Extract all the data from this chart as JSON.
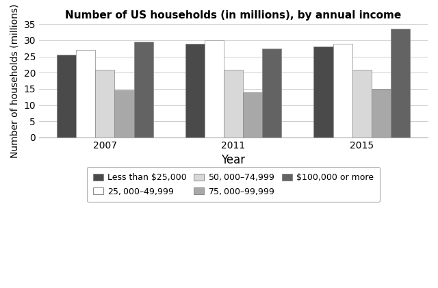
{
  "title": "Number of US households (in millions), by annual income",
  "xlabel": "Year",
  "ylabel": "Number of households (millions)",
  "years": [
    "2007",
    "2011",
    "2015"
  ],
  "categories": [
    "Less than $25,000",
    "$25,000–$49,999",
    "$50,000–$74,999",
    "$75,000–$99,999",
    "$100,000 or more"
  ],
  "values": {
    "Less than $25,000": [
      25.5,
      29.0,
      28.0
    ],
    "$25,000–$49,999": [
      27.0,
      30.0,
      29.0
    ],
    "$50,000–$74,999": [
      21.0,
      21.0,
      21.0
    ],
    "$75,000–$99,999": [
      14.5,
      14.0,
      15.0
    ],
    "$100,000 or more": [
      29.5,
      27.5,
      33.5
    ]
  },
  "colors": {
    "Less than $25,000": "#4a4a4a",
    "$25,000–$49,999": "#ffffff",
    "$50,000–$74,999": "#d8d8d8",
    "$75,000–$99,999": "#a8a8a8",
    "$100,000 or more": "#636363"
  },
  "edge_color": "#888888",
  "ylim": [
    0,
    35
  ],
  "yticks": [
    0,
    5,
    10,
    15,
    20,
    25,
    30,
    35
  ],
  "figsize": [
    6.4,
    4.21
  ],
  "dpi": 100
}
